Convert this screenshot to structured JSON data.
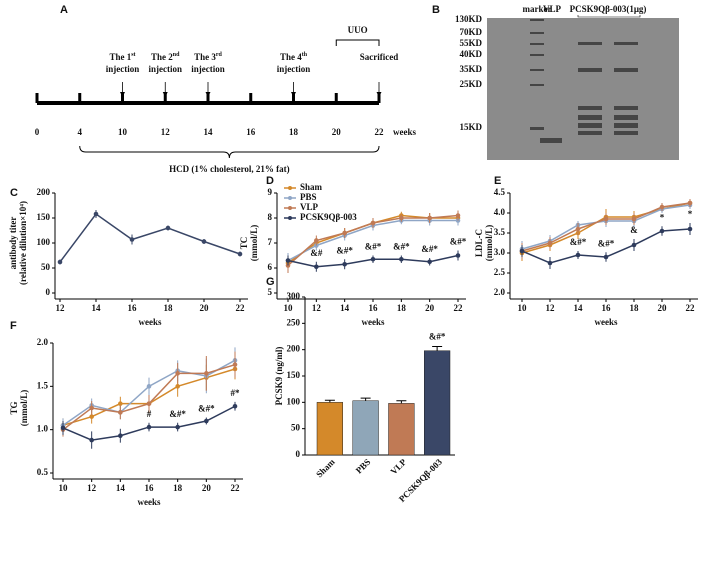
{
  "timeline": {
    "panel": "A",
    "ticks": [
      0,
      4,
      10,
      12,
      14,
      16,
      18,
      20,
      22
    ],
    "unit": "weeks",
    "events": [
      {
        "week": 10,
        "text": "The 1",
        "sup": "st",
        "line2": "injection"
      },
      {
        "week": 12,
        "text": "The 2",
        "sup": "nd",
        "line2": "injection"
      },
      {
        "week": 14,
        "text": "The 3",
        "sup": "rd",
        "line2": "injection"
      },
      {
        "week": 18,
        "text": "The 4",
        "sup": "th",
        "line2": "injection"
      },
      {
        "week": 22,
        "text": "Sacrificed"
      }
    ],
    "period": {
      "label": "UUO",
      "from": 20,
      "to": 22
    },
    "diet": {
      "label": "HCD (1% cholesterol, 21% fat)",
      "from": 4,
      "to": 22
    }
  },
  "gel": {
    "panel": "B",
    "lanes": [
      "marker",
      "VLP",
      "PCSK9Qβ-003(1μg)"
    ],
    "markers": [
      "130KD",
      "70KD",
      "55KD",
      "40KD",
      "35KD",
      "25KD",
      "15KD"
    ]
  },
  "chart_data": [
    {
      "type": "line",
      "panel": "C",
      "xlabel": "weeks",
      "ylabel": [
        "antibody titer",
        "(relative dilution×10⁴)"
      ],
      "x": [
        12,
        14,
        16,
        18,
        20,
        22
      ],
      "xlim": [
        12,
        22
      ],
      "xticks": [
        12,
        14,
        16,
        18,
        20,
        22
      ],
      "ylim": [
        0,
        200
      ],
      "yticks": [
        0,
        50,
        100,
        150,
        200
      ],
      "series": [
        {
          "name": "PCSK9Qβ-003",
          "color": "#3a4767",
          "values": [
            62,
            158,
            107,
            130,
            103,
            78
          ],
          "errors": [
            5,
            8,
            10,
            5,
            5,
            5
          ]
        }
      ]
    },
    {
      "type": "line",
      "panel": "D",
      "xlabel": "weeks",
      "ylabel": [
        "TC",
        "(mmol/L)"
      ],
      "x": [
        10,
        12,
        14,
        16,
        18,
        20,
        22
      ],
      "xlim": [
        10,
        22
      ],
      "xticks": [
        10,
        12,
        14,
        16,
        18,
        20,
        22
      ],
      "ylim": [
        5,
        9
      ],
      "yticks": [
        5,
        6,
        7,
        8,
        9
      ],
      "legend": "upper left",
      "series": [
        {
          "name": "Sham",
          "color": "#d4892a",
          "values": [
            6.2,
            7.0,
            7.4,
            7.8,
            8.1,
            8.0,
            8.0
          ],
          "errors": [
            0.3,
            0.2,
            0.2,
            0.2,
            0.15,
            0.2,
            0.2
          ]
        },
        {
          "name": "PBS",
          "color": "#8fa6c6",
          "values": [
            6.3,
            6.9,
            7.3,
            7.7,
            7.9,
            7.9,
            7.9
          ],
          "errors": [
            0.3,
            0.2,
            0.2,
            0.2,
            0.15,
            0.2,
            0.2
          ]
        },
        {
          "name": "VLP",
          "color": "#c07a55",
          "values": [
            6.1,
            7.1,
            7.4,
            7.8,
            8.0,
            8.0,
            8.1
          ],
          "errors": [
            0.3,
            0.2,
            0.2,
            0.2,
            0.15,
            0.2,
            0.2
          ]
        },
        {
          "name": "PCSK9Qβ-003",
          "color": "#2e3b5c",
          "values": [
            6.3,
            6.05,
            6.15,
            6.35,
            6.35,
            6.25,
            6.5
          ],
          "errors": [
            0.2,
            0.2,
            0.2,
            0.15,
            0.15,
            0.15,
            0.2
          ]
        }
      ],
      "annotations": [
        null,
        "&#",
        "&#*",
        "&#*",
        "&#*",
        "&#*",
        "&#*"
      ]
    },
    {
      "type": "line",
      "panel": "E",
      "xlabel": "weeks",
      "ylabel": [
        "LDL-C",
        "(mmol/L)"
      ],
      "x": [
        10,
        12,
        14,
        16,
        18,
        20,
        22
      ],
      "xlim": [
        10,
        22
      ],
      "xticks": [
        10,
        12,
        14,
        16,
        18,
        20,
        22
      ],
      "ylim": [
        2,
        4.5
      ],
      "yticks": [
        {
          "value": 2,
          "label": "2.0"
        },
        2.5,
        {
          "value": 3,
          "label": "3.0"
        },
        3.5,
        {
          "value": 4,
          "label": "4.0"
        },
        4.5
      ],
      "series": [
        {
          "name": "Sham",
          "color": "#d4892a",
          "values": [
            3.0,
            3.2,
            3.5,
            3.9,
            3.9,
            4.1,
            4.25
          ],
          "errors": [
            0.2,
            0.15,
            0.15,
            0.2,
            0.15,
            0.1,
            0.1
          ]
        },
        {
          "name": "PBS",
          "color": "#8fa6c6",
          "values": [
            3.1,
            3.3,
            3.7,
            3.8,
            3.8,
            4.1,
            4.2
          ],
          "errors": [
            0.2,
            0.15,
            0.1,
            0.15,
            0.15,
            0.1,
            0.1
          ]
        },
        {
          "name": "VLP",
          "color": "#c07a55",
          "values": [
            3.05,
            3.25,
            3.6,
            3.85,
            3.85,
            4.15,
            4.25
          ],
          "errors": [
            0.2,
            0.15,
            0.15,
            0.15,
            0.15,
            0.1,
            0.1
          ]
        },
        {
          "name": "PCSK9Qβ-003",
          "color": "#2e3b5c",
          "values": [
            3.05,
            2.75,
            2.95,
            2.9,
            3.2,
            3.55,
            3.6
          ],
          "errors": [
            0.15,
            0.15,
            0.1,
            0.12,
            0.15,
            0.12,
            0.15
          ]
        }
      ],
      "annotations": [
        null,
        null,
        "&#*",
        "&#*",
        "&",
        "*",
        "*"
      ]
    },
    {
      "type": "line",
      "panel": "F",
      "xlabel": "weeks",
      "ylabel": [
        "TG",
        "(mmol/L)"
      ],
      "x": [
        10,
        12,
        14,
        16,
        18,
        20,
        22
      ],
      "xlim": [
        10,
        22
      ],
      "xticks": [
        10,
        12,
        14,
        16,
        18,
        20,
        22
      ],
      "ylim": [
        0.5,
        2
      ],
      "yticks": [
        0.5,
        {
          "value": 1,
          "label": "1.0"
        },
        1.5,
        {
          "value": 2,
          "label": "2.0"
        }
      ],
      "series": [
        {
          "name": "Sham",
          "color": "#d4892a",
          "values": [
            1.05,
            1.15,
            1.3,
            1.3,
            1.5,
            1.6,
            1.7
          ],
          "errors": [
            0.08,
            0.08,
            0.08,
            0.1,
            0.12,
            0.15,
            0.12
          ]
        },
        {
          "name": "PBS",
          "color": "#8fa6c6",
          "values": [
            1.05,
            1.28,
            1.2,
            1.5,
            1.68,
            1.62,
            1.8
          ],
          "errors": [
            0.08,
            0.08,
            0.08,
            0.1,
            0.12,
            0.2,
            0.15
          ]
        },
        {
          "name": "VLP",
          "color": "#c07a55",
          "values": [
            1.0,
            1.25,
            1.2,
            1.3,
            1.65,
            1.65,
            1.75
          ],
          "errors": [
            0.08,
            0.08,
            0.08,
            0.1,
            0.12,
            0.2,
            0.15
          ]
        },
        {
          "name": "PCSK9Qβ-003",
          "color": "#2e3b5c",
          "values": [
            1.02,
            0.88,
            0.93,
            1.03,
            1.03,
            1.1,
            1.27
          ],
          "errors": [
            0.08,
            0.1,
            0.08,
            0.05,
            0.05,
            0.04,
            0.05
          ]
        }
      ],
      "annotations": [
        null,
        null,
        null,
        "#",
        "&#*",
        "&#*",
        "#*"
      ]
    },
    {
      "type": "bar",
      "panel": "G",
      "ylabel": [
        "PCSK9 (ng/ml)"
      ],
      "categories": [
        "Sham",
        "PBS",
        "VLP",
        "PCSK9Qβ-003"
      ],
      "values": [
        100,
        103,
        98,
        198
      ],
      "errors": [
        4,
        5,
        5,
        8
      ],
      "colors": [
        "#d4892a",
        "#8fa6b8",
        "#c07a55",
        "#3a4767"
      ],
      "ylim": [
        0,
        300
      ],
      "yticks": [
        0,
        50,
        100,
        150,
        200,
        250,
        300
      ],
      "annotations": [
        null,
        null,
        null,
        "&#*"
      ]
    }
  ]
}
